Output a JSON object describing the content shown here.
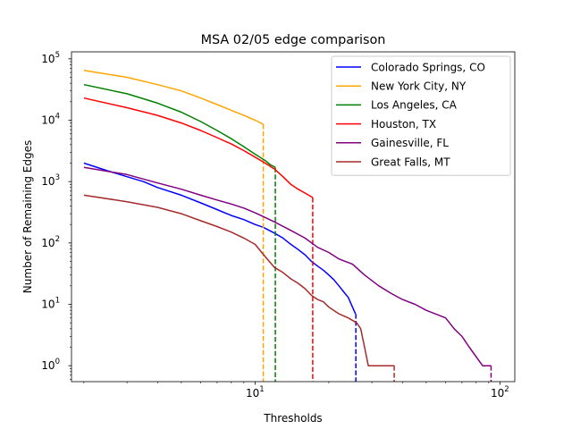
{
  "chart_data": {
    "type": "line",
    "title": "MSA 02/05 edge comparison",
    "xlabel": "Thresholds",
    "ylabel": "Number of Remaining Edges",
    "xscale": "log",
    "yscale": "log",
    "xlim": [
      1.78,
      115
    ],
    "ylim": [
      0.55,
      130000
    ],
    "x_ticks": [
      {
        "value": 10,
        "label": "10",
        "exp": "1"
      },
      {
        "value": 100,
        "label": "10",
        "exp": "2"
      }
    ],
    "y_ticks": [
      {
        "value": 1,
        "label": "10",
        "exp": "0"
      },
      {
        "value": 10,
        "label": "10",
        "exp": "1"
      },
      {
        "value": 100,
        "label": "10",
        "exp": "2"
      },
      {
        "value": 1000,
        "label": "10",
        "exp": "3"
      },
      {
        "value": 10000,
        "label": "10",
        "exp": "4"
      },
      {
        "value": 100000,
        "label": "10",
        "exp": "5"
      }
    ],
    "grid": false,
    "legend_position": "top-right",
    "series": [
      {
        "name": "Colorado Springs, CO",
        "color": "#0000ff",
        "points": [
          [
            2,
            2000
          ],
          [
            2.5,
            1500
          ],
          [
            3,
            1200
          ],
          [
            3.5,
            1000
          ],
          [
            4,
            800
          ],
          [
            5,
            600
          ],
          [
            6,
            450
          ],
          [
            7,
            350
          ],
          [
            8,
            280
          ],
          [
            9,
            240
          ],
          [
            10,
            200
          ],
          [
            10.8,
            180
          ],
          [
            12,
            145
          ],
          [
            13,
            120
          ],
          [
            14,
            95
          ],
          [
            15,
            78
          ],
          [
            16,
            64
          ],
          [
            17,
            50
          ],
          [
            18,
            42
          ],
          [
            19,
            36
          ],
          [
            20,
            30
          ],
          [
            21,
            25
          ],
          [
            22,
            20
          ],
          [
            23,
            16
          ],
          [
            24,
            13
          ],
          [
            25,
            9
          ],
          [
            25.7,
            7
          ],
          [
            25.8,
            0.55
          ]
        ],
        "drop_x": 25.8
      },
      {
        "name": "New York City, NY",
        "color": "#ffa500",
        "points": [
          [
            2,
            65000
          ],
          [
            3,
            50000
          ],
          [
            4,
            38000
          ],
          [
            5,
            30000
          ],
          [
            6,
            23000
          ],
          [
            7,
            18000
          ],
          [
            8,
            14500
          ],
          [
            9,
            12000
          ],
          [
            10,
            10000
          ],
          [
            10.8,
            8600
          ],
          [
            10.8,
            0.55
          ]
        ],
        "drop_x": 10.8
      },
      {
        "name": "Los Angeles, CA",
        "color": "#008000",
        "points": [
          [
            2,
            38000
          ],
          [
            3,
            27000
          ],
          [
            4,
            19000
          ],
          [
            5,
            13500
          ],
          [
            6,
            9500
          ],
          [
            7,
            6800
          ],
          [
            8,
            5000
          ],
          [
            9,
            3700
          ],
          [
            10,
            2800
          ],
          [
            11,
            2200
          ],
          [
            11.5,
            1900
          ],
          [
            12.1,
            1700
          ],
          [
            12.1,
            0.55
          ]
        ],
        "drop_x": 12.1
      },
      {
        "name": "Houston, TX",
        "color": "#ff0000",
        "points": [
          [
            2,
            23000
          ],
          [
            3,
            16000
          ],
          [
            4,
            12000
          ],
          [
            5,
            9000
          ],
          [
            6,
            6800
          ],
          [
            7,
            5200
          ],
          [
            8,
            4100
          ],
          [
            9,
            3200
          ],
          [
            10,
            2500
          ],
          [
            11,
            2000
          ],
          [
            12,
            1600
          ],
          [
            13,
            1200
          ],
          [
            14,
            900
          ],
          [
            15,
            750
          ],
          [
            16,
            650
          ],
          [
            17.2,
            550
          ],
          [
            17.2,
            0.55
          ]
        ],
        "drop_x": 17.2
      },
      {
        "name": "Gainesville, FL",
        "color": "#800080",
        "points": [
          [
            2,
            1700
          ],
          [
            3,
            1300
          ],
          [
            4,
            950
          ],
          [
            5,
            750
          ],
          [
            6,
            600
          ],
          [
            7,
            500
          ],
          [
            8,
            430
          ],
          [
            9,
            370
          ],
          [
            10,
            310
          ],
          [
            11,
            260
          ],
          [
            12,
            220
          ],
          [
            14,
            160
          ],
          [
            16,
            120
          ],
          [
            18,
            85
          ],
          [
            20,
            70
          ],
          [
            22,
            55
          ],
          [
            25,
            45
          ],
          [
            28,
            30
          ],
          [
            32,
            20
          ],
          [
            36,
            15
          ],
          [
            40,
            12
          ],
          [
            45,
            10
          ],
          [
            50,
            8
          ],
          [
            60,
            6
          ],
          [
            65,
            4
          ],
          [
            70,
            3
          ],
          [
            75,
            2
          ],
          [
            85,
            1
          ],
          [
            92,
            1
          ],
          [
            92,
            0.55
          ]
        ],
        "drop_x": 92
      },
      {
        "name": "Great Falls, MT",
        "color": "#a52a2a",
        "points": [
          [
            2,
            600
          ],
          [
            3,
            470
          ],
          [
            4,
            380
          ],
          [
            5,
            300
          ],
          [
            6,
            230
          ],
          [
            7,
            185
          ],
          [
            8,
            150
          ],
          [
            9,
            120
          ],
          [
            10,
            95
          ],
          [
            11,
            60
          ],
          [
            12,
            40
          ],
          [
            13,
            33
          ],
          [
            14,
            26
          ],
          [
            15,
            22
          ],
          [
            16,
            18
          ],
          [
            17,
            14
          ],
          [
            18,
            12
          ],
          [
            19,
            11
          ],
          [
            20,
            9
          ],
          [
            22,
            7
          ],
          [
            24,
            6
          ],
          [
            26,
            5
          ],
          [
            27,
            4
          ],
          [
            28,
            2
          ],
          [
            29,
            1
          ],
          [
            37,
            1
          ],
          [
            37,
            0.55
          ]
        ],
        "drop_x": 37
      }
    ]
  }
}
